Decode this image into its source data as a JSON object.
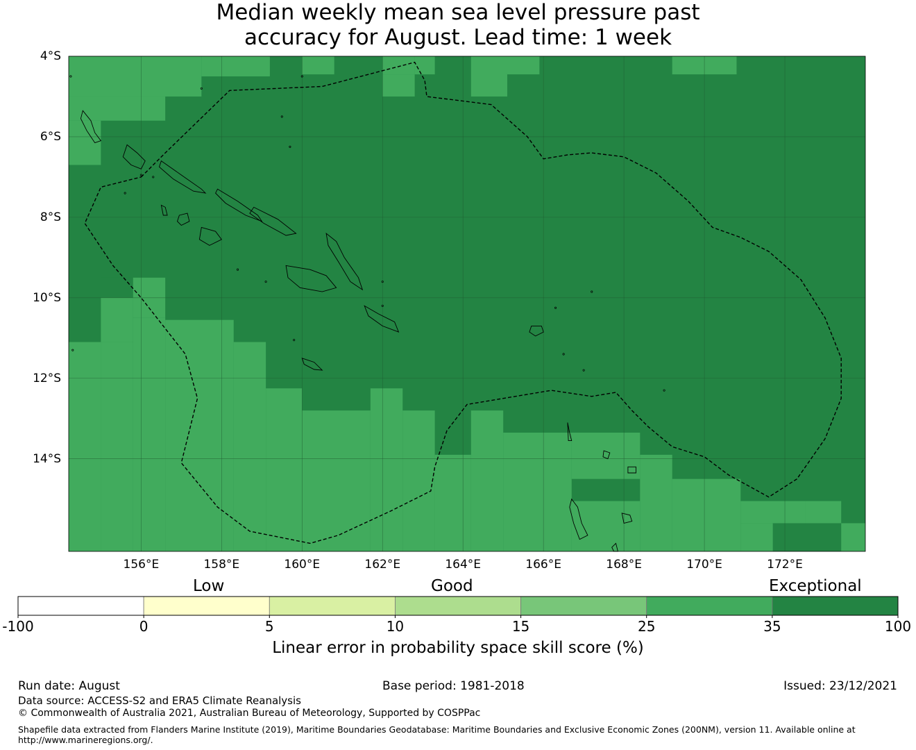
{
  "title": {
    "line1": "Median weekly mean sea level pressure past",
    "line2": "accuracy for August. Lead time: 1 week"
  },
  "map": {
    "lon_range": [
      154.2,
      174.0
    ],
    "lat_range": [
      -16.3,
      -4.0
    ],
    "lat_ticks": [
      {
        "value": -4,
        "label": "4°S"
      },
      {
        "value": -6,
        "label": "6°S"
      },
      {
        "value": -8,
        "label": "8°S"
      },
      {
        "value": -10,
        "label": "10°S"
      },
      {
        "value": -12,
        "label": "12°S"
      },
      {
        "value": -14,
        "label": "14°S"
      }
    ],
    "lon_ticks": [
      {
        "value": 156,
        "label": "156°E"
      },
      {
        "value": 158,
        "label": "158°E"
      },
      {
        "value": 160,
        "label": "160°E"
      },
      {
        "value": 162,
        "label": "162°E"
      },
      {
        "value": 164,
        "label": "164°E"
      },
      {
        "value": 166,
        "label": "166°E"
      },
      {
        "value": 168,
        "label": "168°E"
      },
      {
        "value": 170,
        "label": "170°E"
      },
      {
        "value": 172,
        "label": "172°E"
      }
    ],
    "colors": {
      "exceptional": "#238443",
      "good_high": "#41ab5d",
      "gridline": "#1f5a30",
      "boundary": "#000000"
    },
    "grid_cells_note_lon_start": 154.2,
    "grid_cells": [
      {
        "lon": [
          154.2,
          157.5
        ],
        "lat": [
          -4.0,
          -4.5
        ],
        "cat": "good_high"
      },
      {
        "lon": [
          157.5,
          159.2
        ],
        "lat": [
          -4.0,
          -4.5
        ],
        "cat": "good_high"
      },
      {
        "lon": [
          160.0,
          160.8
        ],
        "lat": [
          -4.0,
          -4.45
        ],
        "cat": "good_high"
      },
      {
        "lon": [
          162.0,
          162.8
        ],
        "lat": [
          -4.0,
          -4.45
        ],
        "cat": "good_high"
      },
      {
        "lon": [
          162.8,
          163.3
        ],
        "lat": [
          -4.0,
          -4.45
        ],
        "cat": "good_high"
      },
      {
        "lon": [
          162.0,
          162.8
        ],
        "lat": [
          -4.45,
          -5.0
        ],
        "cat": "good_high"
      },
      {
        "lon": [
          164.2,
          165.1
        ],
        "lat": [
          -4.0,
          -5.0
        ],
        "cat": "good_high"
      },
      {
        "lon": [
          165.1,
          165.9
        ],
        "lat": [
          -4.0,
          -4.45
        ],
        "cat": "good_high"
      },
      {
        "lon": [
          169.2,
          170.8
        ],
        "lat": [
          -4.0,
          -4.45
        ],
        "cat": "good_high"
      },
      {
        "lon": [
          154.2,
          157.5
        ],
        "lat": [
          -4.5,
          -5.0
        ],
        "cat": "good_high"
      },
      {
        "lon": [
          154.2,
          156.6
        ],
        "lat": [
          -5.0,
          -5.6
        ],
        "cat": "good_high"
      },
      {
        "lon": [
          154.2,
          155.0
        ],
        "lat": [
          -5.6,
          -6.7
        ],
        "cat": "good_high"
      },
      {
        "lon": [
          155.0,
          155.8
        ],
        "lat": [
          -9.5,
          -10.0
        ],
        "cat": "exceptional"
      },
      {
        "lon": [
          155.8,
          156.6
        ],
        "lat": [
          -9.5,
          -10.5
        ],
        "cat": "good_high"
      },
      {
        "lon": [
          155.0,
          155.8
        ],
        "lat": [
          -10.0,
          -11.1
        ],
        "cat": "good_high"
      },
      {
        "lon": [
          154.2,
          155.0
        ],
        "lat": [
          -11.1,
          -16.3
        ],
        "cat": "good_high"
      },
      {
        "lon": [
          155.0,
          155.8
        ],
        "lat": [
          -11.1,
          -16.3
        ],
        "cat": "good_high"
      },
      {
        "lon": [
          155.8,
          156.6
        ],
        "lat": [
          -10.5,
          -16.3
        ],
        "cat": "good_high"
      },
      {
        "lon": [
          156.6,
          158.3
        ],
        "lat": [
          -10.55,
          -16.3
        ],
        "cat": "good_high"
      },
      {
        "lon": [
          158.3,
          159.1
        ],
        "lat": [
          -11.1,
          -16.3
        ],
        "cat": "good_high"
      },
      {
        "lon": [
          159.1,
          160.0
        ],
        "lat": [
          -12.25,
          -16.3
        ],
        "cat": "good_high"
      },
      {
        "lon": [
          160.0,
          161.7
        ],
        "lat": [
          -12.8,
          -16.3
        ],
        "cat": "good_high"
      },
      {
        "lon": [
          161.7,
          162.5
        ],
        "lat": [
          -12.25,
          -16.3
        ],
        "cat": "good_high"
      },
      {
        "lon": [
          162.5,
          163.3
        ],
        "lat": [
          -12.8,
          -16.3
        ],
        "cat": "good_high"
      },
      {
        "lon": [
          163.3,
          164.2
        ],
        "lat": [
          -13.9,
          -16.3
        ],
        "cat": "good_high"
      },
      {
        "lon": [
          164.2,
          165.0
        ],
        "lat": [
          -12.8,
          -16.3
        ],
        "cat": "good_high"
      },
      {
        "lon": [
          165.0,
          166.7
        ],
        "lat": [
          -13.35,
          -16.3
        ],
        "cat": "good_high"
      },
      {
        "lon": [
          166.7,
          168.4
        ],
        "lat": [
          -13.35,
          -14.5
        ],
        "cat": "good_high"
      },
      {
        "lon": [
          168.4,
          169.2
        ],
        "lat": [
          -13.9,
          -16.3
        ],
        "cat": "good_high"
      },
      {
        "lon": [
          166.7,
          168.4
        ],
        "lat": [
          -15.05,
          -16.3
        ],
        "cat": "good_high"
      },
      {
        "lon": [
          169.2,
          170.9
        ],
        "lat": [
          -14.5,
          -16.3
        ],
        "cat": "good_high"
      },
      {
        "lon": [
          170.9,
          172.5
        ],
        "lat": [
          -15.05,
          -15.6
        ],
        "cat": "good_high"
      },
      {
        "lon": [
          170.9,
          171.7
        ],
        "lat": [
          -15.6,
          -16.3
        ],
        "cat": "good_high"
      },
      {
        "lon": [
          172.5,
          173.4
        ],
        "lat": [
          -15.05,
          -15.6
        ],
        "cat": "good_high"
      },
      {
        "lon": [
          173.4,
          174.0
        ],
        "lat": [
          -15.6,
          -16.3
        ],
        "cat": "good_high"
      }
    ],
    "eez_boundary": [
      [
        156.0,
        -7.0
      ],
      [
        156.6,
        -6.4
      ],
      [
        158.2,
        -4.85
      ],
      [
        160.5,
        -4.75
      ],
      [
        162.8,
        -4.15
      ],
      [
        163.05,
        -4.6
      ],
      [
        163.1,
        -5.0
      ],
      [
        164.7,
        -5.2
      ],
      [
        165.6,
        -6.0
      ],
      [
        166.0,
        -6.55
      ],
      [
        166.6,
        -6.45
      ],
      [
        167.2,
        -6.4
      ],
      [
        168.0,
        -6.5
      ],
      [
        168.8,
        -6.9
      ],
      [
        169.6,
        -7.6
      ],
      [
        170.2,
        -8.25
      ],
      [
        170.9,
        -8.5
      ],
      [
        171.6,
        -8.85
      ],
      [
        172.4,
        -9.55
      ],
      [
        173.0,
        -10.5
      ],
      [
        173.4,
        -11.5
      ],
      [
        173.4,
        -12.5
      ],
      [
        173.0,
        -13.5
      ],
      [
        172.3,
        -14.5
      ],
      [
        171.6,
        -14.95
      ],
      [
        170.6,
        -14.4
      ],
      [
        170.0,
        -13.95
      ],
      [
        169.2,
        -13.7
      ],
      [
        168.6,
        -13.2
      ],
      [
        168.2,
        -12.8
      ],
      [
        167.8,
        -12.35
      ],
      [
        167.2,
        -12.45
      ],
      [
        166.2,
        -12.3
      ],
      [
        165.0,
        -12.5
      ],
      [
        164.1,
        -12.65
      ],
      [
        163.6,
        -13.3
      ],
      [
        163.3,
        -14.2
      ],
      [
        163.2,
        -14.8
      ],
      [
        162.2,
        -15.3
      ],
      [
        160.9,
        -15.9
      ],
      [
        160.2,
        -16.1
      ],
      [
        158.7,
        -15.8
      ],
      [
        157.9,
        -15.2
      ],
      [
        157.0,
        -14.1
      ],
      [
        157.4,
        -12.5
      ],
      [
        157.1,
        -11.4
      ],
      [
        156.0,
        -10.0
      ],
      [
        155.3,
        -9.2
      ],
      [
        154.6,
        -8.15
      ],
      [
        155.0,
        -7.25
      ],
      [
        156.0,
        -7.0
      ]
    ],
    "islands": [
      [
        [
          155.65,
          -6.2
        ],
        [
          155.9,
          -6.4
        ],
        [
          156.1,
          -6.6
        ],
        [
          156.0,
          -6.8
        ],
        [
          155.75,
          -6.7
        ],
        [
          155.55,
          -6.5
        ]
      ],
      [
        [
          154.55,
          -5.35
        ],
        [
          154.75,
          -5.6
        ],
        [
          154.85,
          -5.9
        ],
        [
          155.0,
          -6.1
        ],
        [
          154.85,
          -6.15
        ],
        [
          154.65,
          -5.85
        ],
        [
          154.5,
          -5.55
        ]
      ],
      [
        [
          156.5,
          -6.6
        ],
        [
          157.0,
          -6.95
        ],
        [
          157.5,
          -7.3
        ],
        [
          157.6,
          -7.4
        ],
        [
          157.3,
          -7.35
        ],
        [
          156.8,
          -7.05
        ],
        [
          156.45,
          -6.75
        ]
      ],
      [
        [
          157.9,
          -7.3
        ],
        [
          158.4,
          -7.6
        ],
        [
          158.9,
          -7.95
        ],
        [
          159.0,
          -8.1
        ],
        [
          158.6,
          -7.95
        ],
        [
          158.1,
          -7.65
        ],
        [
          157.85,
          -7.4
        ]
      ],
      [
        [
          158.8,
          -7.75
        ],
        [
          159.4,
          -8.05
        ],
        [
          159.85,
          -8.4
        ],
        [
          159.6,
          -8.45
        ],
        [
          159.05,
          -8.15
        ],
        [
          158.7,
          -7.9
        ]
      ],
      [
        [
          159.6,
          -9.2
        ],
        [
          160.2,
          -9.3
        ],
        [
          160.6,
          -9.45
        ],
        [
          160.85,
          -9.75
        ],
        [
          160.5,
          -9.85
        ],
        [
          159.95,
          -9.75
        ],
        [
          159.65,
          -9.5
        ]
      ],
      [
        [
          160.6,
          -8.4
        ],
        [
          160.85,
          -8.6
        ],
        [
          161.05,
          -9.0
        ],
        [
          161.4,
          -9.5
        ],
        [
          161.5,
          -9.8
        ],
        [
          161.2,
          -9.6
        ],
        [
          160.9,
          -9.1
        ],
        [
          160.65,
          -8.7
        ]
      ],
      [
        [
          161.55,
          -10.2
        ],
        [
          161.9,
          -10.4
        ],
        [
          162.3,
          -10.6
        ],
        [
          162.4,
          -10.85
        ],
        [
          162.0,
          -10.7
        ],
        [
          161.65,
          -10.45
        ]
      ],
      [
        [
          157.5,
          -8.25
        ],
        [
          157.85,
          -8.35
        ],
        [
          158.0,
          -8.55
        ],
        [
          157.7,
          -8.7
        ],
        [
          157.45,
          -8.55
        ]
      ],
      [
        [
          156.95,
          -7.95
        ],
        [
          157.15,
          -7.9
        ],
        [
          157.2,
          -8.1
        ],
        [
          157.0,
          -8.2
        ],
        [
          156.9,
          -8.1
        ]
      ],
      [
        [
          156.5,
          -7.7
        ],
        [
          156.6,
          -7.75
        ],
        [
          156.65,
          -7.95
        ],
        [
          156.55,
          -7.95
        ]
      ],
      [
        [
          160.0,
          -11.5
        ],
        [
          160.3,
          -11.6
        ],
        [
          160.5,
          -11.8
        ],
        [
          160.3,
          -11.78
        ],
        [
          160.05,
          -11.65
        ]
      ],
      [
        [
          165.7,
          -10.7
        ],
        [
          165.95,
          -10.7
        ],
        [
          166.0,
          -10.85
        ],
        [
          165.8,
          -10.95
        ],
        [
          165.65,
          -10.85
        ]
      ],
      [
        [
          166.7,
          -15.0
        ],
        [
          166.85,
          -15.2
        ],
        [
          166.95,
          -15.6
        ],
        [
          167.1,
          -15.9
        ],
        [
          166.9,
          -16.0
        ],
        [
          166.75,
          -15.6
        ],
        [
          166.65,
          -15.2
        ]
      ],
      [
        [
          167.7,
          -16.2
        ],
        [
          167.8,
          -16.1
        ],
        [
          167.85,
          -16.3
        ],
        [
          167.75,
          -16.3
        ]
      ],
      [
        [
          167.95,
          -15.35
        ],
        [
          168.15,
          -15.4
        ],
        [
          168.2,
          -15.55
        ],
        [
          168.0,
          -15.6
        ]
      ],
      [
        [
          168.1,
          -14.2
        ],
        [
          168.3,
          -14.2
        ],
        [
          168.3,
          -14.35
        ],
        [
          168.1,
          -14.35
        ]
      ],
      [
        [
          166.6,
          -13.1
        ],
        [
          166.65,
          -13.35
        ],
        [
          166.7,
          -13.55
        ],
        [
          166.62,
          -13.55
        ]
      ],
      [
        [
          167.5,
          -13.8
        ],
        [
          167.65,
          -13.85
        ],
        [
          167.6,
          -14.0
        ],
        [
          167.48,
          -13.95
        ]
      ]
    ],
    "dots": [
      [
        154.25,
        -4.5
      ],
      [
        160.0,
        -4.5
      ],
      [
        157.5,
        -4.8
      ],
      [
        159.7,
        -6.25
      ],
      [
        159.5,
        -5.5
      ],
      [
        162.0,
        -10.2
      ],
      [
        162.0,
        -9.6
      ],
      [
        166.3,
        -10.25
      ],
      [
        167.2,
        -9.85
      ],
      [
        166.5,
        -11.4
      ],
      [
        167.0,
        -11.8
      ],
      [
        169.0,
        -12.3
      ],
      [
        154.3,
        -11.3
      ],
      [
        159.8,
        -11.05
      ],
      [
        158.4,
        -9.3
      ],
      [
        159.1,
        -9.6
      ],
      [
        156.3,
        -7.0
      ],
      [
        156.0,
        -6.95
      ],
      [
        155.6,
        -7.4
      ]
    ]
  },
  "colorbar": {
    "categories": [
      {
        "label": "Low"
      },
      {
        "label": "Good"
      },
      {
        "label": "Exceptional"
      }
    ],
    "bins": [
      {
        "color": "#ffffff"
      },
      {
        "color": "#ffffcc"
      },
      {
        "color": "#d9f0a3"
      },
      {
        "color": "#addd8e"
      },
      {
        "color": "#78c679"
      },
      {
        "color": "#41ab5d"
      },
      {
        "color": "#238443"
      }
    ],
    "ticks": [
      "-100",
      "0",
      "5",
      "10",
      "15",
      "25",
      "35",
      "100"
    ],
    "title": "Linear error in probability space skill score (%)"
  },
  "footer": {
    "run_date": "Run date: August",
    "base_period": "Base period: 1981-2018",
    "issued": "Issued: 23/12/2021",
    "data_source": "Data source: ACCESS-S2 and ERA5 Climate Reanalysis",
    "copyright": "© Commonwealth of Australia 2021, Australian Bureau of Meteorology, Supported by COSPPac",
    "shapefile_line1": "Shapefile data extracted from Flanders Marine Institute (2019), Maritime Boundaries Geodatabase: Maritime Boundaries and Exclusive Economic Zones (200NM), version 11. Available online at",
    "shapefile_line2": "http://www.marineregions.org/."
  }
}
